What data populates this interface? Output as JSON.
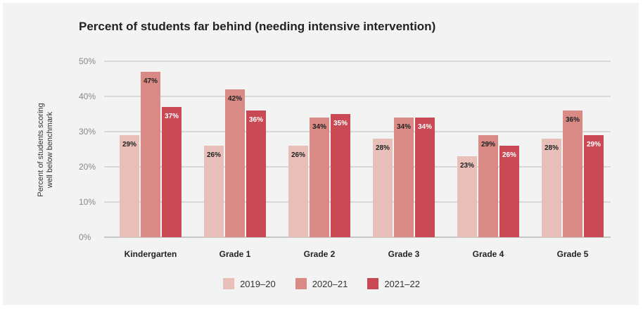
{
  "chart_data": {
    "type": "bar",
    "title": "Percent of students far behind (needing intensive intervention)",
    "ylabel_lines": [
      "Percent of students scoring",
      "well below benchmark"
    ],
    "xlabel": "",
    "ylim": [
      0,
      50
    ],
    "yticks": [
      0,
      10,
      20,
      30,
      40,
      50
    ],
    "ytick_labels": [
      "0%",
      "10%",
      "20%",
      "30%",
      "40%",
      "50%"
    ],
    "grid": true,
    "legend_position": "bottom-center",
    "categories": [
      "Kindergarten",
      "Grade 1",
      "Grade 2",
      "Grade 3",
      "Grade 4",
      "Grade 5"
    ],
    "series": [
      {
        "name": "2019–20",
        "color": "#e8bfb9",
        "values": [
          29,
          26,
          26,
          28,
          23,
          28
        ],
        "labels": [
          "29%",
          "26%",
          "26%",
          "28%",
          "23%",
          "28%"
        ]
      },
      {
        "name": "2020–21",
        "color": "#d98a85",
        "values": [
          47,
          42,
          34,
          34,
          29,
          36
        ],
        "labels": [
          "47%",
          "42%",
          "34%",
          "34%",
          "29%",
          "36%"
        ]
      },
      {
        "name": "2021–22",
        "color": "#c94a55",
        "values": [
          37,
          36,
          35,
          34,
          26,
          29
        ],
        "labels": [
          "37%",
          "36%",
          "35%",
          "34%",
          "26%",
          "29%"
        ]
      }
    ]
  }
}
